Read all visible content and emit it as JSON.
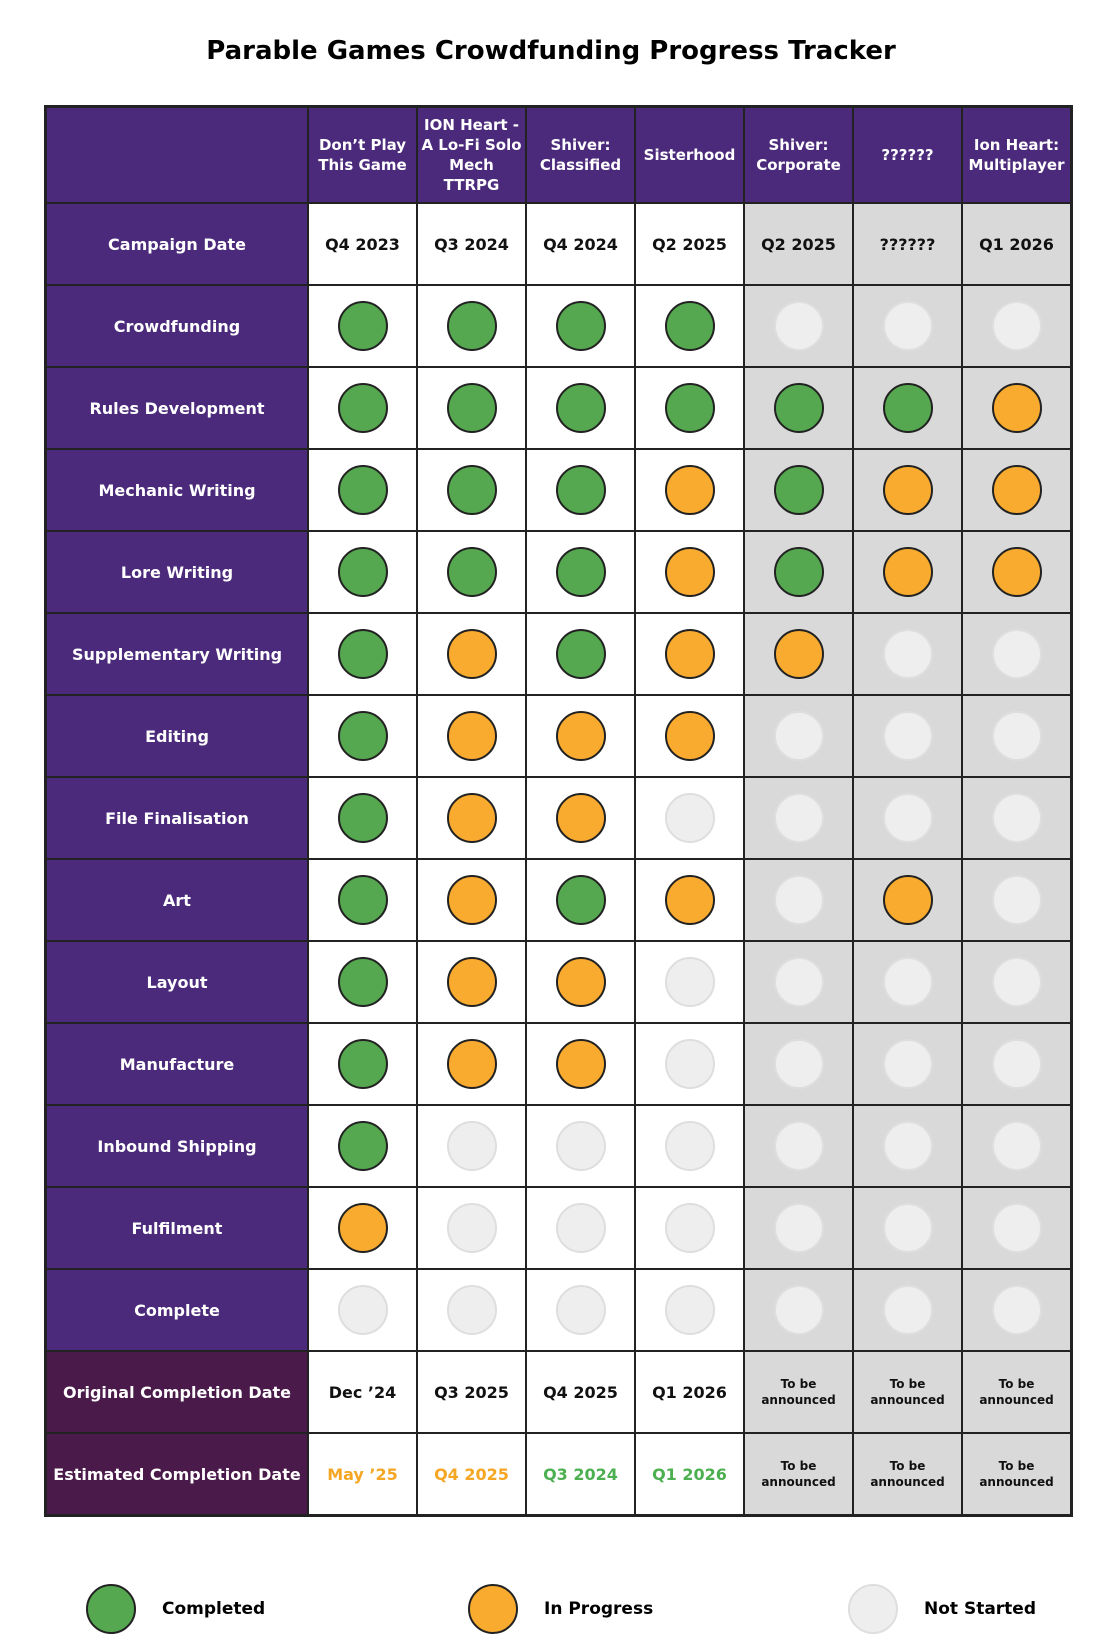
{
  "title": "Parable Games Crowdfunding Progress Tracker",
  "table": {
    "header": [
      "Don’t Play This Game",
      "ION Heart - A Lo-Fi Solo Mech TTRPG",
      "Shiver: Classified",
      "Sisterhood",
      "Shiver: Corporate",
      "??????",
      "Ion Heart: Multiplayer"
    ],
    "rows": [
      {
        "label": "Campaign Date",
        "cells": [
          "Q4 2023",
          "Q3 2024",
          "Q4 2024",
          "Q2 2025",
          "Q2 2025",
          "??????",
          "Q1 2026"
        ]
      },
      {
        "label": "Crowdfunding",
        "status": [
          "Completed",
          "Completed",
          "Completed",
          "Completed",
          "Not Started",
          "Not Started",
          "Not Started"
        ]
      },
      {
        "label": "Rules Development",
        "status": [
          "Completed",
          "Completed",
          "Completed",
          "Completed",
          "Completed",
          "Completed",
          "In Progress"
        ]
      },
      {
        "label": "Mechanic Writing",
        "status": [
          "Completed",
          "Completed",
          "Completed",
          "In Progress",
          "Completed",
          "In Progress",
          "In Progress"
        ]
      },
      {
        "label": "Lore Writing",
        "status": [
          "Completed",
          "Completed",
          "Completed",
          "In Progress",
          "Completed",
          "In Progress",
          "In Progress"
        ]
      },
      {
        "label": "Supplementary Writing",
        "status": [
          "Completed",
          "In Progress",
          "Completed",
          "In Progress",
          "In Progress",
          "Not Started",
          "Not Started"
        ]
      },
      {
        "label": "Editing",
        "status": [
          "Completed",
          "In Progress",
          "In Progress",
          "In Progress",
          "Not Started",
          "Not Started",
          "Not Started"
        ]
      },
      {
        "label": "File Finalisation",
        "status": [
          "Completed",
          "In Progress",
          "In Progress",
          "Not Started",
          "Not Started",
          "Not Started",
          "Not Started"
        ]
      },
      {
        "label": "Art",
        "status": [
          "Completed",
          "In Progress",
          "Completed",
          "In Progress",
          "Not Started",
          "In Progress",
          "Not Started"
        ]
      },
      {
        "label": "Layout",
        "status": [
          "Completed",
          "In Progress",
          "In Progress",
          "Not Started",
          "Not Started",
          "Not Started",
          "Not Started"
        ]
      },
      {
        "label": "Manufacture",
        "status": [
          "Completed",
          "In Progress",
          "In Progress",
          "Not Started",
          "Not Started",
          "Not Started",
          "Not Started"
        ]
      },
      {
        "label": "Inbound Shipping",
        "status": [
          "Completed",
          "Not Started",
          "Not Started",
          "Not Started",
          "Not Started",
          "Not Started",
          "Not Started"
        ]
      },
      {
        "label": "Fulfilment",
        "status": [
          "In Progress",
          "Not Started",
          "Not Started",
          "Not Started",
          "Not Started",
          "Not Started",
          "Not Started"
        ]
      },
      {
        "label": "Complete",
        "status": [
          "Not Started",
          "Not Started",
          "Not Started",
          "Not Started",
          "Not Started",
          "Not Started",
          "Not Started"
        ]
      },
      {
        "label": "Original Completion Date",
        "cells": [
          "Dec ’24",
          "Q3 2025",
          "Q4 2025",
          "Q1 2026",
          "To be announced",
          "To be announced",
          "To be announced"
        ]
      },
      {
        "label": "Estimated Completion Date",
        "cells": [
          "May ’25",
          "Q4 2025",
          "Q3 2024",
          "Q1 2026",
          "To be announced",
          "To be announced",
          "To be announced"
        ],
        "colors": [
          "#f5a623",
          "#f5a623",
          "#4caf50",
          "#4caf50",
          "#111111",
          "#111111",
          "#111111"
        ]
      }
    ]
  },
  "legend": [
    {
      "label": "Completed",
      "color": "#55a84f"
    },
    {
      "label": "In Progress",
      "color": "#f9ab30"
    },
    {
      "label": "Not Started",
      "color": "#eeeeee"
    }
  ]
}
